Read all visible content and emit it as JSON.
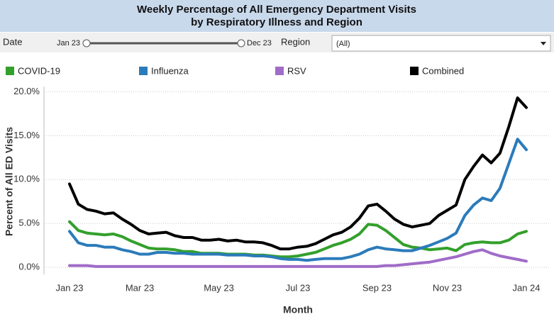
{
  "controls": {
    "date_label": "Date",
    "date_start": "Jan 23",
    "date_end": "Dec 23",
    "region_label": "Region",
    "region_value": "(All)"
  },
  "chart_data": {
    "type": "line",
    "title": [
      "Weekly Percentage of All Emergency Department Visits",
      "by Respiratory Illness and Region"
    ],
    "xlabel": "Month",
    "ylabel": "Percent of All ED Visits",
    "categories": [
      "Jan 23",
      null,
      null,
      null,
      null,
      null,
      null,
      null,
      "Mar 23",
      null,
      null,
      null,
      null,
      null,
      null,
      null,
      null,
      "May 23",
      null,
      null,
      null,
      null,
      null,
      null,
      null,
      null,
      "Jul 23",
      null,
      null,
      null,
      null,
      null,
      null,
      null,
      null,
      "Sep 23",
      null,
      null,
      null,
      null,
      null,
      null,
      null,
      "Nov 23",
      null,
      null,
      null,
      null,
      null,
      null,
      null,
      null,
      "Jan 24"
    ],
    "series": [
      {
        "name": "COVID-19",
        "color": "#33a02c",
        "values": [
          5.2,
          4.2,
          3.9,
          3.8,
          3.7,
          3.8,
          3.5,
          3.0,
          2.6,
          2.2,
          2.1,
          2.1,
          2.0,
          1.8,
          1.8,
          1.6,
          1.6,
          1.6,
          1.5,
          1.5,
          1.5,
          1.4,
          1.4,
          1.3,
          1.2,
          1.2,
          1.3,
          1.5,
          1.7,
          2.1,
          2.5,
          2.8,
          3.2,
          3.8,
          4.9,
          4.8,
          4.2,
          3.4,
          2.6,
          2.3,
          2.2,
          2.0,
          2.1,
          2.2,
          1.9,
          2.6,
          2.8,
          2.9,
          2.8,
          2.8,
          3.1,
          3.8,
          4.1
        ]
      },
      {
        "name": "Influenza",
        "color": "#2b7bba",
        "values": [
          4.1,
          2.8,
          2.5,
          2.5,
          2.3,
          2.3,
          2.0,
          1.8,
          1.5,
          1.5,
          1.7,
          1.7,
          1.6,
          1.6,
          1.5,
          1.5,
          1.5,
          1.5,
          1.4,
          1.4,
          1.4,
          1.3,
          1.3,
          1.2,
          1.0,
          0.9,
          0.9,
          0.8,
          0.9,
          1.0,
          1.0,
          1.0,
          1.2,
          1.5,
          2.0,
          2.3,
          2.1,
          2.0,
          1.9,
          1.9,
          2.2,
          2.5,
          2.9,
          3.3,
          3.9,
          5.9,
          7.1,
          7.9,
          7.6,
          9.0,
          11.8,
          14.6,
          13.4
        ]
      },
      {
        "name": "RSV",
        "color": "#a06cc8",
        "values": [
          0.2,
          0.2,
          0.2,
          0.1,
          0.1,
          0.1,
          0.1,
          0.1,
          0.1,
          0.1,
          0.1,
          0.1,
          0.1,
          0.1,
          0.1,
          0.1,
          0.1,
          0.1,
          0.1,
          0.1,
          0.1,
          0.1,
          0.1,
          0.1,
          0.1,
          0.1,
          0.1,
          0.1,
          0.1,
          0.1,
          0.1,
          0.1,
          0.1,
          0.1,
          0.1,
          0.1,
          0.2,
          0.2,
          0.3,
          0.4,
          0.5,
          0.6,
          0.8,
          1.0,
          1.2,
          1.5,
          1.8,
          2.0,
          1.6,
          1.3,
          1.1,
          0.9,
          0.7
        ]
      },
      {
        "name": "Combined",
        "color": "#000000",
        "values": [
          9.5,
          7.2,
          6.6,
          6.4,
          6.1,
          6.2,
          5.5,
          4.9,
          4.2,
          3.8,
          3.9,
          4.0,
          3.6,
          3.4,
          3.4,
          3.1,
          3.1,
          3.2,
          3.0,
          3.1,
          2.9,
          2.9,
          2.8,
          2.5,
          2.1,
          2.1,
          2.3,
          2.4,
          2.7,
          3.2,
          3.7,
          4.0,
          4.6,
          5.6,
          7.0,
          7.2,
          6.4,
          5.5,
          4.9,
          4.6,
          4.8,
          5.0,
          5.9,
          6.5,
          7.1,
          10.0,
          11.5,
          12.8,
          11.9,
          13.0,
          16.0,
          19.3,
          18.2
        ]
      }
    ],
    "ylim": [
      -0.8,
      20.6
    ],
    "yticks": [
      {
        "value": 0,
        "label": "0.0%"
      },
      {
        "value": 5,
        "label": "5.0%"
      },
      {
        "value": 10,
        "label": "10.0%"
      },
      {
        "value": 15,
        "label": "15.0%"
      },
      {
        "value": 20,
        "label": "20.0%"
      }
    ],
    "grid": true
  }
}
